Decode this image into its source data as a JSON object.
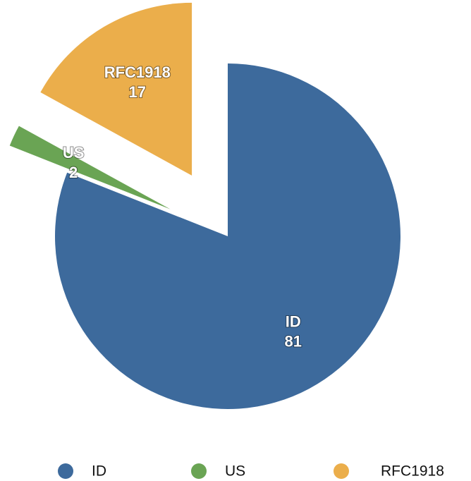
{
  "chart_data": {
    "type": "pie",
    "categories": [
      "ID",
      "US",
      "RFC1918"
    ],
    "values": [
      81,
      2,
      17
    ],
    "colors": [
      "#3d6a9c",
      "#6aa454",
      "#ebae4b"
    ]
  }
}
